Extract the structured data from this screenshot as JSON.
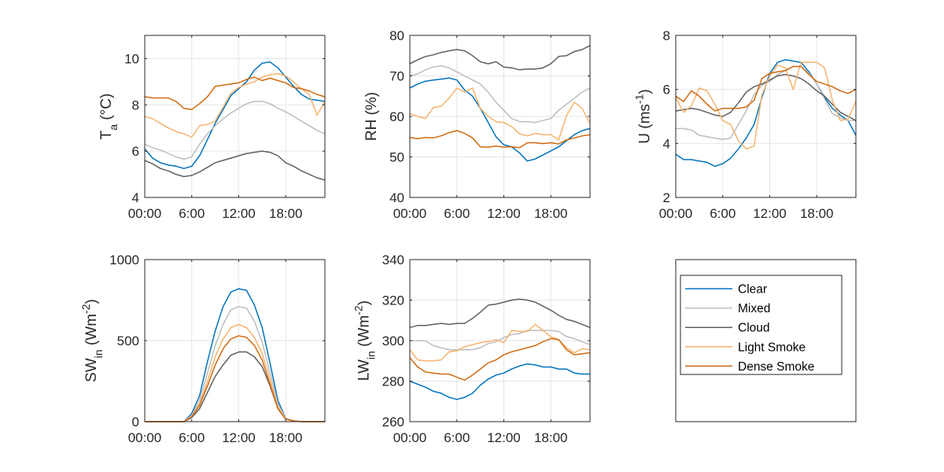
{
  "chart_data": [
    {
      "type": "line",
      "ylabel": "T_a (°C)",
      "ylabel_parts": {
        "main": "T",
        "sub": "a",
        "rest": " (°C)"
      },
      "xlim": [
        0,
        23
      ],
      "ylim": [
        4,
        11
      ],
      "yticks": [
        "4",
        "6",
        "8",
        "10"
      ],
      "ytick_values": [
        4,
        6,
        8,
        10
      ],
      "xticks": [
        "00:00",
        "6:00",
        "12:00",
        "18:00"
      ],
      "xtick_values": [
        0,
        6,
        12,
        18
      ],
      "grid": true,
      "x": [
        0,
        1,
        2,
        3,
        4,
        5,
        6,
        7,
        8,
        9,
        10,
        11,
        12,
        13,
        14,
        15,
        16,
        17,
        18,
        19,
        20,
        21,
        22,
        23
      ],
      "series": [
        {
          "name": "Clear",
          "values": [
            6.1,
            5.7,
            5.5,
            5.4,
            5.35,
            5.25,
            5.35,
            5.8,
            6.5,
            7.2,
            7.8,
            8.4,
            8.7,
            9.0,
            9.5,
            9.8,
            9.85,
            9.6,
            9.2,
            8.8,
            8.45,
            8.25,
            8.2,
            8.15
          ]
        },
        {
          "name": "Mixed",
          "values": [
            6.3,
            6.15,
            6.05,
            5.9,
            5.75,
            5.65,
            5.75,
            6.3,
            6.75,
            7.1,
            7.4,
            7.65,
            7.85,
            8.05,
            8.15,
            8.15,
            8.05,
            7.85,
            7.7,
            7.5,
            7.3,
            7.1,
            6.9,
            6.75
          ]
        },
        {
          "name": "Cloud",
          "values": [
            5.6,
            5.45,
            5.25,
            5.15,
            5.0,
            4.9,
            4.95,
            5.1,
            5.3,
            5.5,
            5.6,
            5.7,
            5.8,
            5.9,
            5.95,
            6.0,
            5.95,
            5.8,
            5.5,
            5.35,
            5.15,
            5.0,
            4.85,
            4.75
          ]
        },
        {
          "name": "Light Smoke",
          "values": [
            7.5,
            7.4,
            7.2,
            7.0,
            6.85,
            6.75,
            6.6,
            7.1,
            7.15,
            7.3,
            7.9,
            8.5,
            8.75,
            8.9,
            9.0,
            9.2,
            9.3,
            9.35,
            9.25,
            9.0,
            8.7,
            8.45,
            7.55,
            8.15
          ]
        },
        {
          "name": "Dense Smoke",
          "values": [
            8.35,
            8.3,
            8.3,
            8.3,
            8.15,
            7.85,
            7.8,
            8.05,
            8.35,
            8.8,
            8.85,
            8.9,
            8.95,
            9.1,
            9.2,
            9.05,
            9.15,
            9.05,
            8.95,
            8.75,
            8.7,
            8.6,
            8.45,
            8.35
          ]
        }
      ]
    },
    {
      "type": "line",
      "ylabel": "RH (%)",
      "ylabel_parts": {
        "main": "RH (%)",
        "sub": "",
        "rest": ""
      },
      "xlim": [
        0,
        23
      ],
      "ylim": [
        40,
        80
      ],
      "yticks": [
        "40",
        "50",
        "60",
        "70",
        "80"
      ],
      "ytick_values": [
        40,
        50,
        60,
        70,
        80
      ],
      "xticks": [
        "00:00",
        "6:00",
        "12:00",
        "18:00"
      ],
      "xtick_values": [
        0,
        6,
        12,
        18
      ],
      "grid": true,
      "x": [
        0,
        1,
        2,
        3,
        4,
        5,
        6,
        7,
        8,
        9,
        10,
        11,
        12,
        13,
        14,
        15,
        16,
        17,
        18,
        19,
        20,
        21,
        22,
        23
      ],
      "series": [
        {
          "name": "Clear",
          "values": [
            67,
            68,
            68.7,
            69,
            69.2,
            69.5,
            69,
            66.5,
            65,
            62,
            58.5,
            55,
            53,
            52.5,
            51,
            49,
            49.5,
            50.5,
            51.5,
            52.5,
            54,
            55.5,
            56.5,
            57
          ]
        },
        {
          "name": "Mixed",
          "values": [
            70,
            70.5,
            71.5,
            72.2,
            72.5,
            72,
            71,
            70,
            69,
            68,
            66,
            63.5,
            61.5,
            59.5,
            58.7,
            58.7,
            58.5,
            59,
            59.5,
            61.5,
            63,
            64.5,
            66,
            67
          ]
        },
        {
          "name": "Cloud",
          "values": [
            73,
            74,
            74.8,
            75.2,
            75.8,
            76.2,
            76.5,
            76.2,
            75,
            73.5,
            73,
            73.5,
            72.2,
            72,
            71.5,
            71.7,
            71.7,
            72,
            73,
            74.8,
            75,
            76,
            76.5,
            77.5
          ]
        },
        {
          "name": "Light Smoke",
          "values": [
            60.7,
            60,
            59.5,
            62.2,
            62.5,
            64.5,
            67,
            66,
            67,
            62,
            60,
            58.7,
            58.5,
            57.5,
            55.7,
            55.2,
            55.8,
            55.5,
            55.5,
            54.2,
            60.2,
            63.5,
            62,
            58.2
          ]
        },
        {
          "name": "Dense Smoke",
          "values": [
            54.8,
            54.5,
            54.8,
            54.7,
            55.2,
            56,
            56.5,
            55.8,
            54.7,
            52.5,
            52.4,
            52.7,
            52.4,
            52.5,
            52.3,
            53.5,
            53.5,
            53.3,
            53.5,
            53.2,
            54.2,
            54.7,
            55.2,
            55.5
          ]
        }
      ]
    },
    {
      "type": "line",
      "ylabel": "U (ms^-1)",
      "ylabel_parts": {
        "main": "U (ms",
        "sup": "-1",
        "rest": ")"
      },
      "xlim": [
        0,
        23
      ],
      "ylim": [
        2,
        8
      ],
      "yticks": [
        "2",
        "4",
        "6",
        "8"
      ],
      "ytick_values": [
        2,
        4,
        6,
        8
      ],
      "xticks": [
        "00:00",
        "6:00",
        "12:00",
        "18:00"
      ],
      "xtick_values": [
        0,
        6,
        12,
        18
      ],
      "grid": true,
      "x": [
        0,
        1,
        2,
        3,
        4,
        5,
        6,
        7,
        8,
        9,
        10,
        11,
        12,
        13,
        14,
        15,
        16,
        17,
        18,
        19,
        20,
        21,
        22,
        23
      ],
      "series": [
        {
          "name": "Clear",
          "values": [
            3.6,
            3.4,
            3.4,
            3.35,
            3.3,
            3.15,
            3.25,
            3.45,
            3.8,
            4.2,
            4.7,
            5.7,
            6.6,
            7.0,
            7.1,
            7.05,
            7.0,
            6.65,
            6.2,
            5.7,
            5.3,
            5.05,
            4.85,
            4.3
          ]
        },
        {
          "name": "Mixed",
          "values": [
            4.55,
            4.55,
            4.5,
            4.3,
            4.25,
            4.2,
            4.15,
            4.2,
            4.7,
            5.2,
            5.8,
            6.15,
            6.3,
            6.55,
            6.7,
            6.85,
            6.85,
            6.6,
            6.2,
            5.65,
            5.1,
            4.95,
            4.85,
            4.85
          ]
        },
        {
          "name": "Cloud",
          "values": [
            5.2,
            5.25,
            5.3,
            5.25,
            5.15,
            5.05,
            5.0,
            5.15,
            5.5,
            5.9,
            6.1,
            6.2,
            6.35,
            6.5,
            6.55,
            6.5,
            6.4,
            6.2,
            5.95,
            5.75,
            5.45,
            5.15,
            5.0,
            4.85
          ]
        },
        {
          "name": "Light Smoke",
          "values": [
            5.7,
            5.15,
            5.4,
            6.05,
            5.95,
            5.45,
            4.85,
            4.7,
            4.1,
            3.8,
            3.9,
            5.8,
            6.5,
            6.9,
            6.8,
            6.0,
            7.0,
            7.0,
            7.0,
            6.8,
            5.6,
            4.85,
            4.9,
            5.55
          ]
        },
        {
          "name": "Dense Smoke",
          "values": [
            5.75,
            5.55,
            5.95,
            5.75,
            5.45,
            5.2,
            5.3,
            5.3,
            5.3,
            5.35,
            5.6,
            6.4,
            6.6,
            6.65,
            6.7,
            6.85,
            6.85,
            6.55,
            6.3,
            6.2,
            6.1,
            5.95,
            5.85,
            6.0
          ]
        }
      ]
    },
    {
      "type": "line",
      "ylabel": "SW_in (Wm^-2)",
      "ylabel_parts": {
        "main": "SW",
        "sub": "in",
        "rest": " (Wm",
        "sup": "-2",
        "rest2": ")"
      },
      "xlim": [
        0,
        23
      ],
      "ylim": [
        0,
        1000
      ],
      "yticks": [
        "0",
        "500",
        "1000"
      ],
      "ytick_values": [
        0,
        500,
        1000
      ],
      "xticks": [
        "00:00",
        "6:00",
        "12:00",
        "18:00"
      ],
      "xtick_values": [
        0,
        6,
        12,
        18
      ],
      "grid": true,
      "x": [
        0,
        1,
        2,
        3,
        4,
        5,
        6,
        7,
        8,
        9,
        10,
        11,
        12,
        13,
        14,
        15,
        16,
        17,
        18,
        19,
        20,
        21,
        22,
        23
      ],
      "series": [
        {
          "name": "Clear",
          "values": [
            0,
            0,
            0,
            0,
            0,
            0,
            50,
            160,
            370,
            560,
            710,
            800,
            820,
            810,
            720,
            580,
            360,
            130,
            20,
            5,
            0,
            0,
            0,
            0
          ]
        },
        {
          "name": "Mixed",
          "values": [
            0,
            0,
            0,
            0,
            0,
            0,
            40,
            130,
            300,
            470,
            600,
            690,
            710,
            700,
            620,
            490,
            300,
            110,
            20,
            5,
            0,
            0,
            0,
            0
          ]
        },
        {
          "name": "Cloud",
          "values": [
            0,
            0,
            0,
            0,
            0,
            0,
            25,
            80,
            180,
            280,
            350,
            410,
            430,
            430,
            400,
            340,
            220,
            80,
            15,
            5,
            0,
            0,
            0,
            0
          ]
        },
        {
          "name": "Light Smoke",
          "values": [
            0,
            0,
            0,
            0,
            0,
            0,
            30,
            110,
            250,
            400,
            510,
            580,
            600,
            580,
            520,
            420,
            260,
            90,
            15,
            5,
            0,
            0,
            0,
            0
          ]
        },
        {
          "name": "Dense Smoke",
          "values": [
            0,
            0,
            0,
            0,
            0,
            0,
            30,
            100,
            220,
            350,
            450,
            510,
            530,
            520,
            470,
            380,
            230,
            80,
            15,
            5,
            0,
            0,
            0,
            0
          ]
        }
      ]
    },
    {
      "type": "line",
      "ylabel": "LW_in (Wm^-2)",
      "ylabel_parts": {
        "main": "LW",
        "sub": "in",
        "rest": " (Wm",
        "sup": "-2",
        "rest2": ")"
      },
      "xlim": [
        0,
        23
      ],
      "ylim": [
        260,
        340
      ],
      "yticks": [
        "260",
        "280",
        "300",
        "320",
        "340"
      ],
      "ytick_values": [
        260,
        280,
        300,
        320,
        340
      ],
      "xticks": [
        "00:00",
        "6:00",
        "12:00",
        "18:00"
      ],
      "xtick_values": [
        0,
        6,
        12,
        18
      ],
      "grid": true,
      "x": [
        0,
        1,
        2,
        3,
        4,
        5,
        6,
        7,
        8,
        9,
        10,
        11,
        12,
        13,
        14,
        15,
        16,
        17,
        18,
        19,
        20,
        21,
        22,
        23
      ],
      "series": [
        {
          "name": "Clear",
          "values": [
            280,
            278.5,
            277,
            275,
            274,
            272,
            271,
            272,
            274,
            278,
            281,
            283,
            284,
            286,
            287.5,
            288.5,
            288,
            287,
            287,
            286,
            286,
            284,
            283.5,
            283.5
          ]
        },
        {
          "name": "Mixed",
          "values": [
            300,
            300,
            299.8,
            297.5,
            296.5,
            295.5,
            295.5,
            295.5,
            295.5,
            296.5,
            298.5,
            299.5,
            301.5,
            303,
            303.5,
            305,
            305,
            305,
            305,
            304.5,
            302,
            301,
            299.5,
            298
          ]
        },
        {
          "name": "Cloud",
          "values": [
            306.5,
            307.5,
            307.5,
            308,
            308.5,
            308,
            308.5,
            308.5,
            311,
            314,
            317.5,
            318,
            319,
            320,
            320.5,
            320,
            319,
            317,
            315,
            312.5,
            310.5,
            309.5,
            308,
            306.5
          ]
        },
        {
          "name": "Light Smoke",
          "values": [
            295.5,
            290.5,
            290,
            290,
            290.5,
            294.5,
            295,
            297,
            298,
            299,
            299.5,
            300.5,
            299,
            305,
            304.5,
            304.5,
            308,
            305,
            302,
            300.5,
            296.5,
            294,
            296,
            295.5
          ]
        },
        {
          "name": "Dense Smoke",
          "values": [
            291.5,
            287,
            284.5,
            284,
            283.5,
            283.5,
            282,
            280.5,
            283,
            286,
            289,
            290.5,
            293,
            294.5,
            295.5,
            296.5,
            297.5,
            299.5,
            301,
            300.5,
            295.5,
            293,
            293.5,
            294
          ]
        }
      ]
    }
  ],
  "legend": {
    "placement": "bottom-right panel",
    "entries": [
      "Clear",
      "Mixed",
      "Cloud",
      "Light Smoke",
      "Dense Smoke"
    ]
  },
  "colors": {
    "Clear": "#0072BD",
    "Mixed": "#BDBDBD",
    "Cloud": "#5F5F5F",
    "Light Smoke": "#F5B36E",
    "Dense Smoke": "#D06A10",
    "axis": "#262626",
    "grid": "#e6e6e6"
  }
}
